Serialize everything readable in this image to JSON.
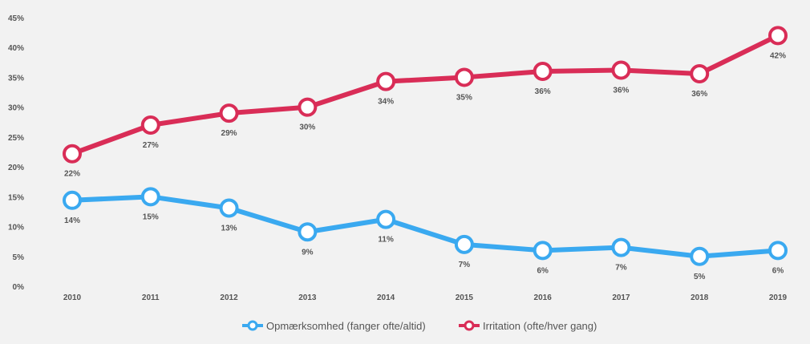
{
  "chart_data": {
    "type": "line",
    "title": "",
    "xlabel": "",
    "ylabel": "",
    "x": [
      "2010",
      "2011",
      "2012",
      "2013",
      "2014",
      "2015",
      "2016",
      "2017",
      "2018",
      "2019"
    ],
    "ylim": [
      0,
      45
    ],
    "yticks": [
      0,
      5,
      10,
      15,
      20,
      25,
      30,
      35,
      40,
      45
    ],
    "ytick_labels": [
      "0%",
      "5%",
      "10%",
      "15%",
      "20%",
      "25%",
      "30%",
      "35%",
      "40%",
      "45%"
    ],
    "grid": false,
    "legend_position": "bottom-center",
    "series": [
      {
        "name": "Opmærksomhed (fanger ofte/altid)",
        "color": "#3aa9f0",
        "values": [
          14.4,
          15.0,
          13.1,
          9.1,
          11.2,
          7.0,
          6.0,
          6.5,
          5.0,
          6.0
        ],
        "labels": [
          "14%",
          "15%",
          "13%",
          "9%",
          "11%",
          "7%",
          "6%",
          "7%",
          "5%",
          "6%"
        ],
        "label_position": "below"
      },
      {
        "name": "Irritation (ofte/hver gang)",
        "color": "#d92d57",
        "values": [
          22.2,
          27.0,
          29.0,
          30.0,
          34.3,
          35.0,
          36.0,
          36.2,
          35.6,
          42.0
        ],
        "labels": [
          "22%",
          "27%",
          "29%",
          "30%",
          "34%",
          "35%",
          "36%",
          "36%",
          "36%",
          "42%"
        ],
        "label_position": "below"
      }
    ]
  }
}
